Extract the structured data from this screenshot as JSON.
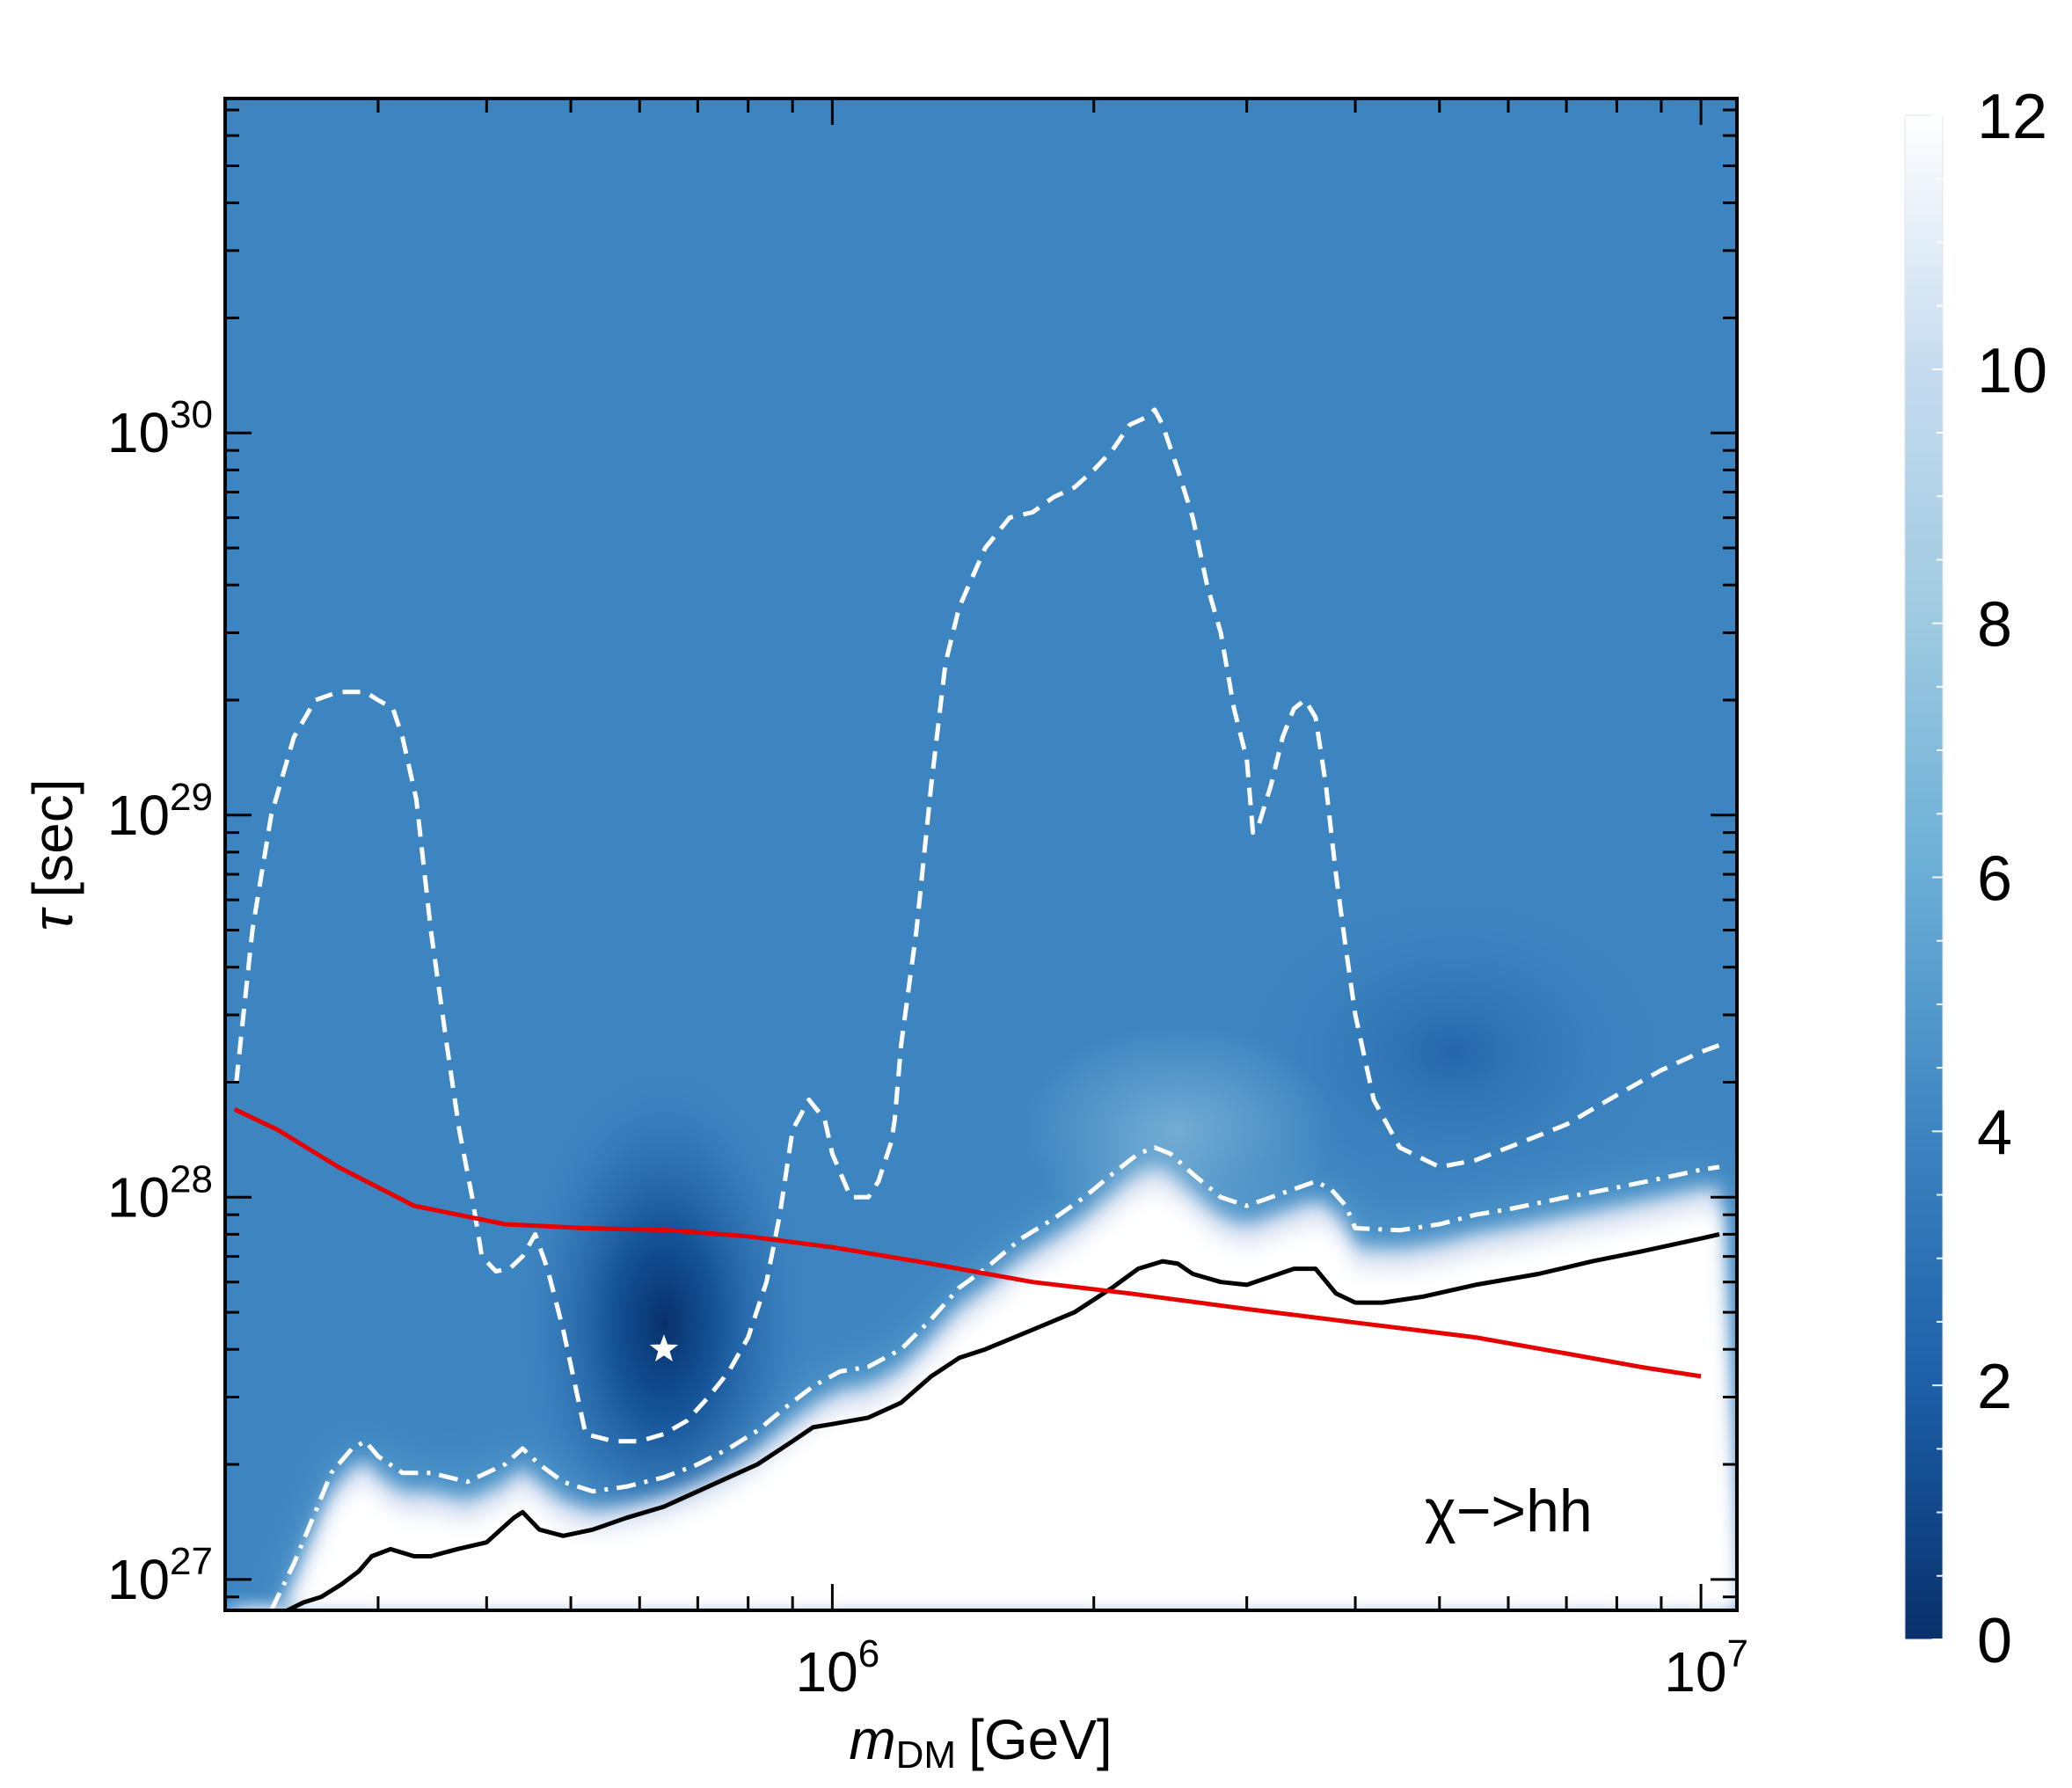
{
  "chart_data": {
    "type": "heatmap",
    "annotation": "χ−>hh",
    "xlabel": {
      "symbol": "m",
      "subscript": "DM",
      "unit": "[GeV]"
    },
    "ylabel": {
      "symbol": "τ",
      "unit": "[sec]"
    },
    "x_scale": "log",
    "y_scale": "log",
    "xlim": [
      200000,
      11000000
    ],
    "ylim": [
      8.3e+26,
      7.5e+30
    ],
    "x_ticks": [
      {
        "value": 1000000,
        "base": "10",
        "exp": "6"
      },
      {
        "value": 10000000,
        "base": "10",
        "exp": "7"
      }
    ],
    "y_ticks": [
      {
        "value": 1e+27,
        "base": "10",
        "exp": "27"
      },
      {
        "value": 1e+28,
        "base": "10",
        "exp": "28"
      },
      {
        "value": 1e+29,
        "base": "10",
        "exp": "29"
      },
      {
        "value": 1e+30,
        "base": "10",
        "exp": "30"
      }
    ],
    "colorbar": {
      "min": 0,
      "max": 12,
      "ticks": [
        "0",
        "2",
        "4",
        "6",
        "8",
        "10",
        "12"
      ],
      "colors": [
        "#08306b",
        "#1d5fa8",
        "#3d85c1",
        "#6aaed6",
        "#9ecae1",
        "#c6dbef",
        "#ffffff"
      ]
    },
    "best_fit": {
      "name": "best-fit point",
      "marker": "star",
      "x": 640000,
      "y": 4e+27
    },
    "series": [
      {
        "name": "1σ contour",
        "style": "dashed",
        "color": "#ffffff",
        "x": [
          206000,
          215000,
          226000,
          240000,
          254000,
          270000,
          290000,
          300000,
          312000,
          320000,
          332000,
          345000,
          360000,
          372000,
          385000,
          395000,
          410000,
          425000,
          440000,
          455000,
          470000,
          490000,
          520000,
          560000,
          600000,
          640000,
          680000,
          720000,
          760000,
          800000,
          840000,
          870000,
          900000,
          940000,
          980000,
          1000000,
          1050000,
          1100000,
          1130000,
          1170000,
          1180000,
          1200000,
          1250000,
          1300000,
          1350000,
          1400000,
          1450000,
          1500000,
          1600000,
          1700000,
          1800000,
          1900000,
          2000000,
          2100000,
          2200000,
          2300000,
          2350000,
          2400000,
          2500000,
          2600000,
          2700000,
          2800000,
          2900000,
          3000000,
          3050000,
          3100000,
          3200000,
          3300000,
          3400000,
          3500000,
          3550000,
          3600000,
          3700000,
          3800000,
          3900000,
          4000000,
          4200000,
          4500000,
          5000000,
          5500000,
          6000000,
          6500000,
          7000000,
          7500000,
          8000000,
          8500000,
          9000000,
          10000000,
          10500000
        ],
        "y": [
          2e+28,
          5e+28,
          1e+29,
          1.6e+29,
          2e+29,
          2.1e+29,
          2.1e+29,
          2e+29,
          1.9e+29,
          1.6e+29,
          1.1e+29,
          5e+28,
          2.5e+28,
          1.5e+28,
          1e+28,
          7e+27,
          6.4e+27,
          6.5e+27,
          7e+27,
          8e+27,
          6.5e+27,
          4.5e+27,
          2.4e+27,
          2.3e+27,
          2.3e+27,
          2.4e+27,
          2.6e+27,
          3e+27,
          3.5e+27,
          4.3e+27,
          6e+27,
          9e+27,
          1.5e+28,
          1.8e+28,
          1.6e+28,
          1.3e+28,
          1e+28,
          1e+28,
          1.1e+28,
          1.4e+28,
          1.6e+28,
          2.5e+28,
          5e+28,
          1.2e+29,
          2.5e+29,
          3.5e+29,
          4.2e+29,
          5e+29,
          6e+29,
          6.2e+29,
          6.8e+29,
          7.2e+29,
          8e+29,
          9e+29,
          1.05e+30,
          1.1e+30,
          1.15e+30,
          1.05e+30,
          8e+29,
          6e+29,
          4e+29,
          3e+29,
          1.9e+29,
          1.4e+29,
          9e+28,
          9.5e+28,
          1.2e+29,
          1.6e+29,
          1.9e+29,
          2e+29,
          1.9e+29,
          1.8e+29,
          1.2e+29,
          7e+28,
          4.5e+28,
          3e+28,
          1.8e+28,
          1.35e+28,
          1.2e+28,
          1.25e+28,
          1.35e+28,
          1.45e+28,
          1.55e+28,
          1.7e+28,
          1.85e+28,
          2e+28,
          2.15e+28,
          2.4e+28,
          2.5e+28
        ]
      },
      {
        "name": "2σ contour",
        "style": "dash-dot",
        "color": "#ffffff",
        "x": [
          226000,
          240000,
          254000,
          265000,
          280000,
          290000,
          300000,
          320000,
          345000,
          380000,
          420000,
          440000,
          460000,
          490000,
          530000,
          580000,
          640000,
          700000,
          760000,
          820000,
          880000,
          950000,
          1020000,
          1100000,
          1200000,
          1300000,
          1400000,
          1500000,
          1650000,
          1800000,
          1950000,
          2100000,
          2250000,
          2350000,
          2450000,
          2600000,
          2800000,
          3000000,
          3200000,
          3400000,
          3600000,
          3750000,
          3900000,
          4000000,
          4500000,
          5000000,
          5500000,
          6000000,
          7000000,
          8000000,
          9000000,
          10000000,
          10500000
        ],
        "y": [
          8.3e+26,
          1.1e+27,
          1.5e+27,
          1.9e+27,
          2.2e+27,
          2.3e+27,
          2.1e+27,
          1.9e+27,
          1.9e+27,
          1.8e+27,
          2e+27,
          2.2e+27,
          2e+27,
          1.8e+27,
          1.7e+27,
          1.75e+27,
          1.85e+27,
          2e+27,
          2.2e+27,
          2.45e+27,
          2.8e+27,
          3.2e+27,
          3.5e+27,
          3.6e+27,
          4e+27,
          4.8e+27,
          5.8e+27,
          6.5e+27,
          7.8e+27,
          8.8e+27,
          1e+28,
          1.15e+28,
          1.3e+28,
          1.35e+28,
          1.3e+28,
          1.15e+28,
          1e+28,
          9.5e+27,
          1e+28,
          1.05e+28,
          1.1e+28,
          1.05e+28,
          9.5e+27,
          8.3e+27,
          8.2e+27,
          8.5e+27,
          9e+27,
          9.3e+27,
          1e+28,
          1.06e+28,
          1.12e+28,
          1.18e+28,
          1.2e+28
        ]
      },
      {
        "name": "exclusion limit",
        "style": "solid",
        "color": "#000000",
        "x": [
          236000,
          246000,
          258000,
          272000,
          285000,
          295000,
          310000,
          330000,
          345000,
          370000,
          400000,
          430000,
          440000,
          460000,
          490000,
          530000,
          580000,
          640000,
          700000,
          760000,
          820000,
          900000,
          950000,
          1000000,
          1100000,
          1200000,
          1300000,
          1400000,
          1500000,
          1700000,
          1900000,
          2100000,
          2250000,
          2400000,
          2500000,
          2600000,
          2800000,
          3000000,
          3200000,
          3400000,
          3600000,
          3800000,
          4000000,
          4300000,
          4800000,
          5500000,
          6500000,
          7500000,
          8500000,
          10000000,
          10500000
        ],
        "y": [
          8.3e+26,
          8.7e+26,
          9e+26,
          9.7e+26,
          1.05e+27,
          1.15e+27,
          1.2e+27,
          1.15e+27,
          1.15e+27,
          1.2e+27,
          1.25e+27,
          1.45e+27,
          1.5e+27,
          1.35e+27,
          1.3e+27,
          1.35e+27,
          1.45e+27,
          1.55e+27,
          1.7e+27,
          1.85e+27,
          2e+27,
          2.3e+27,
          2.5e+27,
          2.55e+27,
          2.65e+27,
          2.9e+27,
          3.4e+27,
          3.8e+27,
          4e+27,
          4.5e+27,
          5e+27,
          5.8e+27,
          6.5e+27,
          6.8e+27,
          6.7e+27,
          6.3e+27,
          6e+27,
          5.9e+27,
          6.2e+27,
          6.5e+27,
          6.5e+27,
          5.6e+27,
          5.3e+27,
          5.3e+27,
          5.5e+27,
          5.9e+27,
          6.3e+27,
          6.8e+27,
          7.2e+27,
          7.8e+27,
          8e+27
        ]
      },
      {
        "name": "reference limit",
        "style": "solid",
        "color": "#e60000",
        "x": [
          205000,
          230000,
          270000,
          330000,
          420000,
          520000,
          650000,
          800000,
          1000000,
          1300000,
          1700000,
          2200000,
          3000000,
          4000000,
          5500000,
          7000000,
          8500000,
          10000000
        ],
        "y": [
          1.7e+28,
          1.5e+28,
          1.2e+28,
          9.5e+27,
          8.5e+27,
          8.3e+27,
          8.2e+27,
          7.9e+27,
          7.4e+27,
          6.7e+27,
          6e+27,
          5.6e+27,
          5.1e+27,
          4.7e+27,
          4.3e+27,
          3.9e+27,
          3.6e+27,
          3.4e+27
        ]
      }
    ]
  }
}
